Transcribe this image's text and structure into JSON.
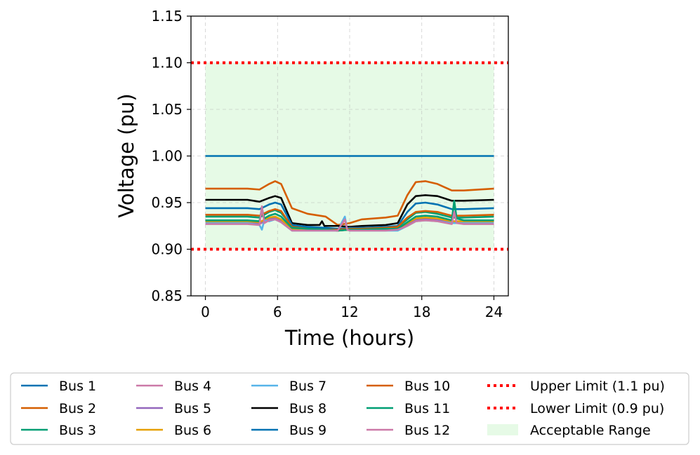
{
  "chart_data": {
    "type": "line",
    "xlabel": "Time (hours)",
    "ylabel": "Voltage (pu)",
    "xlim": [
      -1.2,
      25.2
    ],
    "ylim": [
      0.85,
      1.15
    ],
    "xticks": [
      0,
      6,
      12,
      18,
      24
    ],
    "yticks": [
      0.85,
      0.9,
      0.95,
      1.0,
      1.05,
      1.1,
      1.15
    ],
    "xtick_labels": [
      "0",
      "6",
      "12",
      "18",
      "24"
    ],
    "ytick_labels": [
      "0.85",
      "0.90",
      "0.95",
      "1.00",
      "1.05",
      "1.10",
      "1.15"
    ],
    "grid": true,
    "legend_position": "below",
    "acceptable_range": {
      "name": "Acceptable Range",
      "x": [
        0,
        24
      ],
      "y": [
        0.9,
        1.1
      ],
      "color": "#e6fae6"
    },
    "limits": [
      {
        "name": "Upper Limit (1.1 pu)",
        "y": 1.1,
        "color": "#ff0000",
        "style": "dotted"
      },
      {
        "name": "Lower Limit (0.9 pu)",
        "y": 0.9,
        "color": "#ff0000",
        "style": "dotted"
      }
    ],
    "series": [
      {
        "name": "Bus 1",
        "color": "#0072b2",
        "points": [
          [
            0,
            1.0
          ],
          [
            24,
            1.0
          ]
        ]
      },
      {
        "name": "Bus 2",
        "color": "#d55e00",
        "points": [
          [
            0,
            0.965
          ],
          [
            3.5,
            0.965
          ],
          [
            4.5,
            0.964
          ],
          [
            5.3,
            0.97
          ],
          [
            5.8,
            0.973
          ],
          [
            6.3,
            0.97
          ],
          [
            7.2,
            0.944
          ],
          [
            8.5,
            0.938
          ],
          [
            10,
            0.935
          ],
          [
            11,
            0.926
          ],
          [
            12,
            0.928
          ],
          [
            13,
            0.932
          ],
          [
            15,
            0.934
          ],
          [
            16,
            0.936
          ],
          [
            16.8,
            0.958
          ],
          [
            17.5,
            0.972
          ],
          [
            18.3,
            0.973
          ],
          [
            19.3,
            0.97
          ],
          [
            20.5,
            0.963
          ],
          [
            21.5,
            0.963
          ],
          [
            24,
            0.965
          ]
        ]
      },
      {
        "name": "Bus 3",
        "color": "#009e73",
        "points": [
          [
            0,
            0.935
          ],
          [
            3.5,
            0.935
          ],
          [
            4.5,
            0.934
          ],
          [
            5.3,
            0.94
          ],
          [
            5.8,
            0.942
          ],
          [
            6.3,
            0.939
          ],
          [
            7.2,
            0.925
          ],
          [
            8.5,
            0.923
          ],
          [
            10,
            0.922
          ],
          [
            11,
            0.921
          ],
          [
            12,
            0.922
          ],
          [
            13,
            0.922
          ],
          [
            15,
            0.923
          ],
          [
            16,
            0.924
          ],
          [
            16.8,
            0.932
          ],
          [
            17.5,
            0.939
          ],
          [
            18.3,
            0.94
          ],
          [
            19.3,
            0.938
          ],
          [
            20.5,
            0.934
          ],
          [
            21.5,
            0.934
          ],
          [
            24,
            0.935
          ]
        ]
      },
      {
        "name": "Bus 4",
        "color": "#cc79a7",
        "points": [
          [
            0,
            0.928
          ],
          [
            3.5,
            0.928
          ],
          [
            4.5,
            0.927
          ],
          [
            5.3,
            0.932
          ],
          [
            5.8,
            0.933
          ],
          [
            6.3,
            0.93
          ],
          [
            7.2,
            0.921
          ],
          [
            8.5,
            0.921
          ],
          [
            10,
            0.921
          ],
          [
            11,
            0.92
          ],
          [
            12,
            0.921
          ],
          [
            13,
            0.921
          ],
          [
            15,
            0.921
          ],
          [
            16,
            0.921
          ],
          [
            16.8,
            0.926
          ],
          [
            17.5,
            0.931
          ],
          [
            18.3,
            0.932
          ],
          [
            19.3,
            0.931
          ],
          [
            20.5,
            0.928
          ],
          [
            21.5,
            0.928
          ],
          [
            24,
            0.928
          ]
        ]
      },
      {
        "name": "Bus 5",
        "color": "#9467bd",
        "points": [
          [
            0,
            0.929
          ],
          [
            3.5,
            0.929
          ],
          [
            4.5,
            0.928
          ],
          [
            5.3,
            0.933
          ],
          [
            5.8,
            0.934
          ],
          [
            6.3,
            0.931
          ],
          [
            7.2,
            0.921
          ],
          [
            8.5,
            0.921
          ],
          [
            10,
            0.921
          ],
          [
            11,
            0.92
          ],
          [
            12,
            0.921
          ],
          [
            13,
            0.921
          ],
          [
            15,
            0.921
          ],
          [
            16,
            0.921
          ],
          [
            16.8,
            0.927
          ],
          [
            17.5,
            0.932
          ],
          [
            18.3,
            0.933
          ],
          [
            19.3,
            0.932
          ],
          [
            20.5,
            0.929
          ],
          [
            21.5,
            0.929
          ],
          [
            24,
            0.929
          ]
        ]
      },
      {
        "name": "Bus 6",
        "color": "#e69f00",
        "points": [
          [
            0,
            0.93
          ],
          [
            3.5,
            0.93
          ],
          [
            4.5,
            0.929
          ],
          [
            5.3,
            0.934
          ],
          [
            5.8,
            0.935
          ],
          [
            6.3,
            0.932
          ],
          [
            7.2,
            0.922
          ],
          [
            8.5,
            0.921
          ],
          [
            10,
            0.921
          ],
          [
            11,
            0.92
          ],
          [
            12,
            0.921
          ],
          [
            13,
            0.921
          ],
          [
            15,
            0.921
          ],
          [
            16,
            0.922
          ],
          [
            16.8,
            0.928
          ],
          [
            17.5,
            0.933
          ],
          [
            18.3,
            0.934
          ],
          [
            19.3,
            0.933
          ],
          [
            20.5,
            0.93
          ],
          [
            21.5,
            0.93
          ],
          [
            24,
            0.93
          ]
        ]
      },
      {
        "name": "Bus 7",
        "color": "#56b4e9",
        "points": [
          [
            0,
            0.928
          ],
          [
            3.5,
            0.928
          ],
          [
            4.5,
            0.926
          ],
          [
            4.7,
            0.921
          ],
          [
            4.9,
            0.931
          ],
          [
            5.3,
            0.93
          ],
          [
            5.8,
            0.932
          ],
          [
            6.3,
            0.929
          ],
          [
            7.2,
            0.92
          ],
          [
            8.5,
            0.92
          ],
          [
            10,
            0.92
          ],
          [
            11,
            0.92
          ],
          [
            11.6,
            0.935
          ],
          [
            11.8,
            0.921
          ],
          [
            12,
            0.92
          ],
          [
            13,
            0.92
          ],
          [
            15,
            0.92
          ],
          [
            16,
            0.92
          ],
          [
            16.8,
            0.925
          ],
          [
            17.5,
            0.93
          ],
          [
            18.3,
            0.931
          ],
          [
            19.3,
            0.93
          ],
          [
            20.5,
            0.928
          ],
          [
            21.5,
            0.928
          ],
          [
            24,
            0.928
          ]
        ]
      },
      {
        "name": "Bus 8",
        "color": "#000000",
        "points": [
          [
            0,
            0.953
          ],
          [
            3.5,
            0.953
          ],
          [
            4.5,
            0.951
          ],
          [
            5.3,
            0.955
          ],
          [
            5.8,
            0.957
          ],
          [
            6.3,
            0.955
          ],
          [
            7.2,
            0.928
          ],
          [
            8.5,
            0.926
          ],
          [
            9.5,
            0.926
          ],
          [
            9.7,
            0.93
          ],
          [
            9.9,
            0.925
          ],
          [
            11,
            0.925
          ],
          [
            12,
            0.924
          ],
          [
            13,
            0.925
          ],
          [
            15,
            0.926
          ],
          [
            16,
            0.928
          ],
          [
            16.8,
            0.948
          ],
          [
            17.5,
            0.957
          ],
          [
            18.3,
            0.958
          ],
          [
            19.3,
            0.957
          ],
          [
            20.5,
            0.952
          ],
          [
            21.5,
            0.952
          ],
          [
            24,
            0.953
          ]
        ]
      },
      {
        "name": "Bus 9",
        "color": "#0072b2",
        "points": [
          [
            0,
            0.944
          ],
          [
            3.5,
            0.944
          ],
          [
            4.5,
            0.943
          ],
          [
            5.3,
            0.948
          ],
          [
            5.8,
            0.95
          ],
          [
            6.3,
            0.948
          ],
          [
            7.2,
            0.926
          ],
          [
            8.5,
            0.924
          ],
          [
            10,
            0.923
          ],
          [
            11,
            0.922
          ],
          [
            12,
            0.923
          ],
          [
            13,
            0.923
          ],
          [
            15,
            0.924
          ],
          [
            16,
            0.925
          ],
          [
            16.8,
            0.94
          ],
          [
            17.5,
            0.949
          ],
          [
            18.3,
            0.95
          ],
          [
            19.3,
            0.948
          ],
          [
            20.5,
            0.943
          ],
          [
            21.5,
            0.943
          ],
          [
            24,
            0.944
          ]
        ]
      },
      {
        "name": "Bus 10",
        "color": "#d55e00",
        "points": [
          [
            0,
            0.937
          ],
          [
            3.5,
            0.937
          ],
          [
            4.5,
            0.936
          ],
          [
            5.3,
            0.941
          ],
          [
            5.8,
            0.943
          ],
          [
            6.3,
            0.941
          ],
          [
            7.2,
            0.924
          ],
          [
            8.5,
            0.922
          ],
          [
            10,
            0.921
          ],
          [
            11,
            0.921
          ],
          [
            12,
            0.922
          ],
          [
            13,
            0.922
          ],
          [
            15,
            0.923
          ],
          [
            16,
            0.924
          ],
          [
            16.8,
            0.934
          ],
          [
            17.5,
            0.94
          ],
          [
            18.3,
            0.941
          ],
          [
            19.3,
            0.94
          ],
          [
            20.5,
            0.936
          ],
          [
            21.5,
            0.936
          ],
          [
            24,
            0.937
          ]
        ]
      },
      {
        "name": "Bus 11",
        "color": "#009e73",
        "points": [
          [
            0,
            0.931
          ],
          [
            3.5,
            0.931
          ],
          [
            4.5,
            0.93
          ],
          [
            4.7,
            0.944
          ],
          [
            4.9,
            0.933
          ],
          [
            5.3,
            0.936
          ],
          [
            5.8,
            0.938
          ],
          [
            6.3,
            0.935
          ],
          [
            7.2,
            0.923
          ],
          [
            8.5,
            0.922
          ],
          [
            10,
            0.921
          ],
          [
            11,
            0.92
          ],
          [
            12,
            0.921
          ],
          [
            13,
            0.921
          ],
          [
            15,
            0.922
          ],
          [
            16,
            0.922
          ],
          [
            16.8,
            0.929
          ],
          [
            17.5,
            0.935
          ],
          [
            18.3,
            0.936
          ],
          [
            19.3,
            0.935
          ],
          [
            20.5,
            0.931
          ],
          [
            20.7,
            0.952
          ],
          [
            20.9,
            0.933
          ],
          [
            21.5,
            0.931
          ],
          [
            24,
            0.931
          ]
        ]
      },
      {
        "name": "Bus 12",
        "color": "#cc79a7",
        "points": [
          [
            0,
            0.927
          ],
          [
            3.5,
            0.927
          ],
          [
            4.5,
            0.926
          ],
          [
            4.7,
            0.946
          ],
          [
            4.9,
            0.928
          ],
          [
            5.3,
            0.931
          ],
          [
            5.8,
            0.932
          ],
          [
            6.3,
            0.929
          ],
          [
            7.2,
            0.92
          ],
          [
            8.5,
            0.92
          ],
          [
            10,
            0.92
          ],
          [
            11,
            0.92
          ],
          [
            11.6,
            0.932
          ],
          [
            11.8,
            0.921
          ],
          [
            12,
            0.92
          ],
          [
            13,
            0.92
          ],
          [
            15,
            0.92
          ],
          [
            16,
            0.921
          ],
          [
            16.8,
            0.925
          ],
          [
            17.5,
            0.93
          ],
          [
            18.3,
            0.931
          ],
          [
            19.3,
            0.93
          ],
          [
            20.5,
            0.927
          ],
          [
            20.7,
            0.94
          ],
          [
            20.9,
            0.928
          ],
          [
            21.5,
            0.927
          ],
          [
            24,
            0.927
          ]
        ]
      }
    ],
    "legend_order": [
      "Bus 1",
      "Bus 2",
      "Bus 3",
      "Bus 4",
      "Bus 5",
      "Bus 6",
      "Bus 7",
      "Bus 8",
      "Bus 9",
      "Bus 10",
      "Bus 11",
      "Bus 12",
      "Upper Limit (1.1 pu)",
      "Lower Limit (0.9 pu)",
      "Acceptable Range"
    ]
  }
}
